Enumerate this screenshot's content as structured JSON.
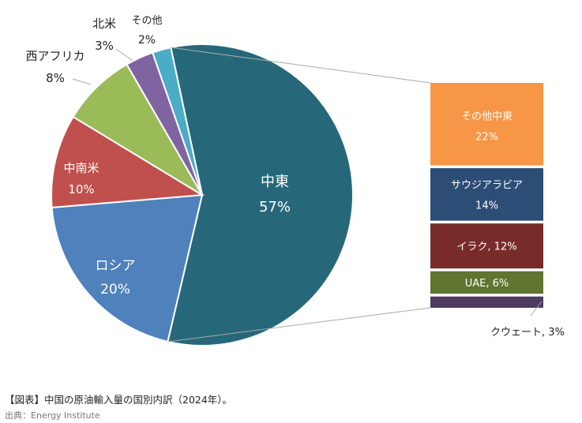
{
  "chart_data": {
    "type": "pie-of-bar",
    "title": "",
    "pie": [
      {
        "label": "中東",
        "value": 57,
        "display": "57%",
        "color": "#26687a"
      },
      {
        "label": "ロシア",
        "value": 20,
        "display": "20%",
        "color": "#4f81bd"
      },
      {
        "label": "中南米",
        "value": 10,
        "display": "10%",
        "color": "#c0504d"
      },
      {
        "label": "西アフリカ",
        "value": 8,
        "display": "8%",
        "color": "#9bbb59"
      },
      {
        "label": "北米",
        "value": 3,
        "display": "3%",
        "color": "#8064a2"
      },
      {
        "label": "その他",
        "value": 2,
        "display": "2%",
        "color": "#4bacc6"
      }
    ],
    "bar": [
      {
        "label": "その他中東",
        "value": 22,
        "display": "22%",
        "color": "#f79646"
      },
      {
        "label": "サウジアラビア",
        "value": 14,
        "display": "14%",
        "color": "#2c4d75"
      },
      {
        "label": "イラク",
        "value": 12,
        "display": "イラク, 12%",
        "color": "#772c2a"
      },
      {
        "label": "UAE",
        "value": 6,
        "display": "UAE, 6%",
        "color": "#5f7530"
      },
      {
        "label": "クウェート",
        "value": 3,
        "display": "クウェート, 3%",
        "color": "#4d3b62"
      }
    ]
  },
  "caption": "【図表】中国の原油輸入量の国別内訳（2024年）。",
  "source": "出典：Energy Institute"
}
